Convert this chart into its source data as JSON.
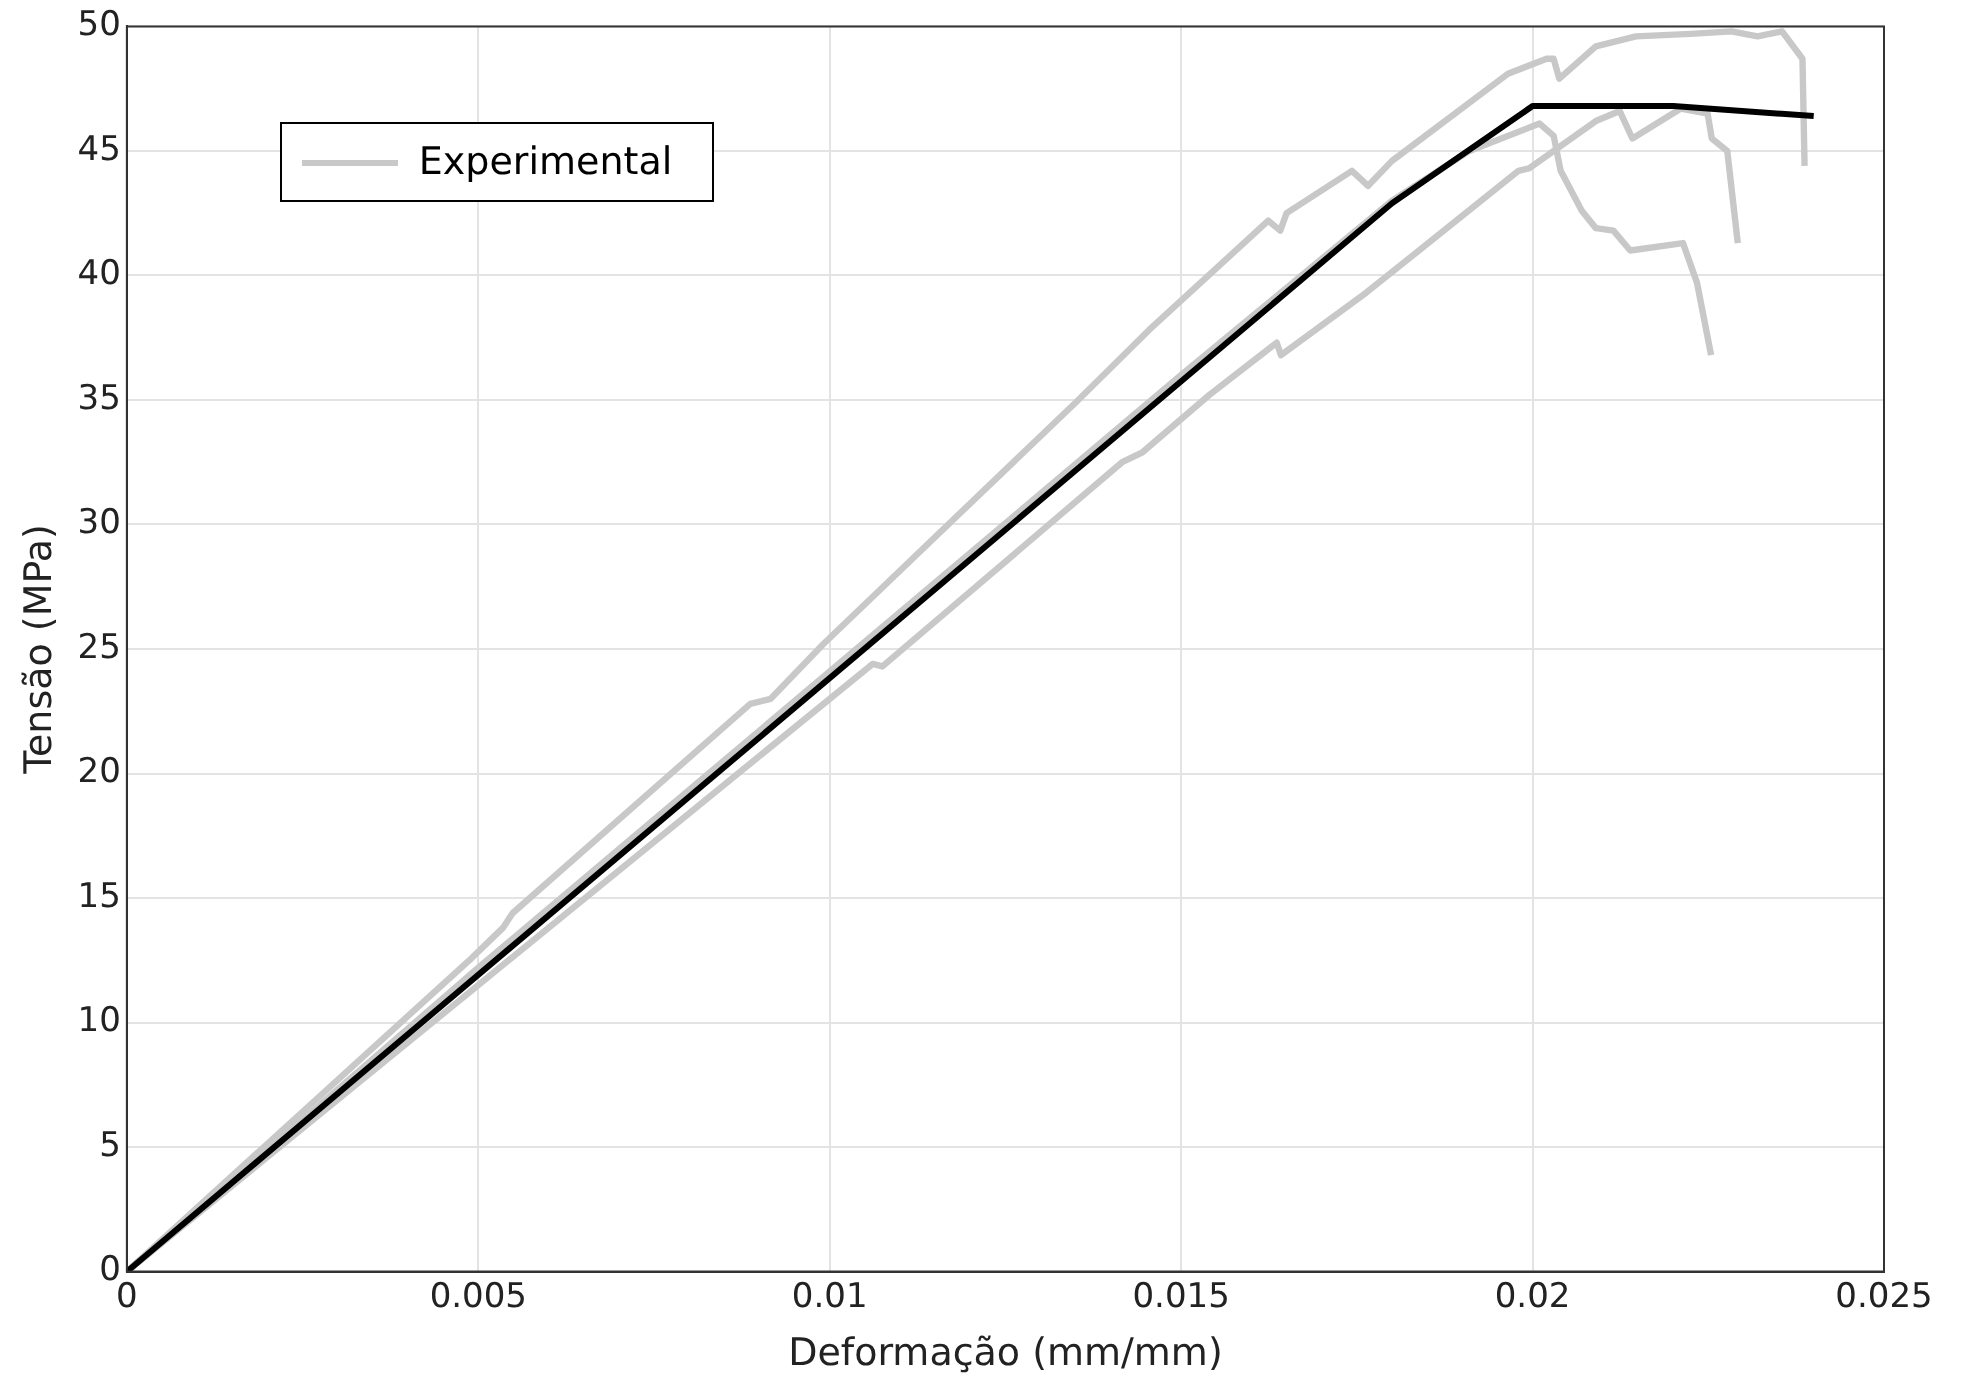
{
  "chart_data": {
    "type": "line",
    "xlabel": "Deformação (mm/mm)",
    "ylabel": "Tensão (MPa)",
    "xlim": [
      0,
      0.025
    ],
    "xticks": [
      0,
      0.005,
      0.01,
      0.015,
      0.02,
      0.025
    ],
    "ylim": [
      0,
      50
    ],
    "yticks": [
      0,
      5,
      10,
      15,
      20,
      25,
      30,
      35,
      40,
      45,
      50
    ],
    "grid": true,
    "legend": "top left",
    "marker": "none",
    "line_style": "solid",
    "series": [
      {
        "name": "Experimental",
        "color": "#c8c8c8",
        "x": [
          0,
          0.00491,
          0.00535,
          0.00549,
          0.00887,
          0.00916,
          0.00991,
          0.0135,
          0.01454,
          0.01624,
          0.01641,
          0.0165,
          0.01743,
          0.01766,
          0.018,
          0.01965,
          0.0202,
          0.0203,
          0.02038,
          0.0209,
          0.02147,
          0.02225,
          0.02283,
          0.0232,
          0.02355,
          0.02384,
          0.02387
        ],
        "values": [
          0,
          12.6,
          13.8,
          14.4,
          22.8,
          23.0,
          25.2,
          34.9,
          37.8,
          42.2,
          41.8,
          42.5,
          44.2,
          43.6,
          44.6,
          48.1,
          48.7,
          48.7,
          47.9,
          49.2,
          49.6,
          49.7,
          49.8,
          49.6,
          49.8,
          48.7,
          44.4
        ]
      },
      {
        "color": "#c8c8c8",
        "x": [
          0,
          0.005,
          0.01,
          0.015,
          0.018,
          0.0191,
          0.0201,
          0.0203,
          0.0204,
          0.0207,
          0.0209,
          0.02115,
          0.02139,
          0.02214,
          0.02234,
          0.02254
        ],
        "values": [
          0,
          12.2,
          24.1,
          36.0,
          43.0,
          45.0,
          46.1,
          45.6,
          44.2,
          42.6,
          41.9,
          41.8,
          41.0,
          41.3,
          39.7,
          36.8
        ]
      },
      {
        "color": "#c8c8c8",
        "x": [
          0,
          0.00491,
          0.01061,
          0.01075,
          0.01416,
          0.01445,
          0.0154,
          0.01636,
          0.01642,
          0.01763,
          0.0198,
          0.01995,
          0.0209,
          0.02124,
          0.02142,
          0.02211,
          0.02249,
          0.02255,
          0.02277,
          0.02292
        ],
        "values": [
          0,
          11.3,
          24.4,
          24.3,
          32.5,
          32.9,
          35.2,
          37.3,
          36.8,
          39.3,
          44.2,
          44.3,
          46.2,
          46.6,
          45.5,
          46.7,
          46.5,
          45.5,
          45.0,
          41.3
        ]
      },
      {
        "color": "#000000",
        "x": [
          0,
          0.018,
          0.02,
          0.022,
          0.024
        ],
        "values": [
          0,
          42.9,
          46.8,
          46.8,
          46.4
        ]
      }
    ]
  }
}
